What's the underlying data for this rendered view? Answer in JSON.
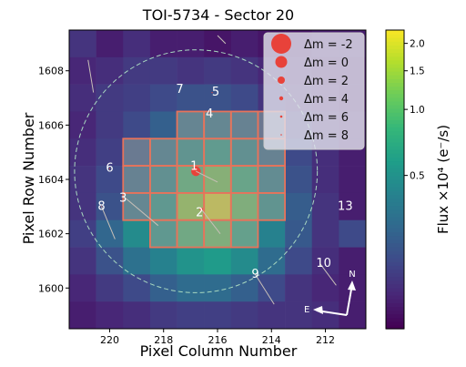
{
  "chart_data": {
    "type": "heatmap",
    "title": "TOI-5734 - Sector 20",
    "xlabel": "Pixel Column Number",
    "ylabel": "Pixel Row Number",
    "x_ticks": [
      "220",
      "218",
      "216",
      "214",
      "212"
    ],
    "y_ticks": [
      "1600",
      "1602",
      "1604",
      "1606",
      "1608"
    ],
    "xlim": [
      221.5,
      210.5
    ],
    "ylim": [
      1598.5,
      1609.5
    ],
    "colorbar": {
      "label": "Flux ×10⁴ (e⁻/s)",
      "scale": "log",
      "ticks": [
        "2.0",
        "1.5",
        "1.0",
        "0.5"
      ],
      "tick_values": [
        2.0,
        1.5,
        1.0,
        0.5
      ],
      "range": [
        0.1,
        2.3
      ],
      "colormap": "viridis"
    },
    "flux_grid_rows_top_to_bottom": [
      [
        0.16,
        0.13,
        0.15,
        0.13,
        0.13,
        0.12,
        0.13,
        0.12,
        0.12,
        0.13,
        0.13
      ],
      [
        0.14,
        0.15,
        0.17,
        0.17,
        0.16,
        0.17,
        0.16,
        0.14,
        0.13,
        0.12,
        0.12
      ],
      [
        0.15,
        0.17,
        0.18,
        0.2,
        0.22,
        0.22,
        0.2,
        0.16,
        0.14,
        0.13,
        0.12
      ],
      [
        0.14,
        0.17,
        0.2,
        0.26,
        0.32,
        0.35,
        0.3,
        0.22,
        0.17,
        0.14,
        0.13
      ],
      [
        0.15,
        0.18,
        0.24,
        0.34,
        0.5,
        0.6,
        0.45,
        0.3,
        0.2,
        0.15,
        0.13
      ],
      [
        0.16,
        0.2,
        0.3,
        0.45,
        0.9,
        1.2,
        0.8,
        0.4,
        0.22,
        0.15,
        0.13
      ],
      [
        0.16,
        0.22,
        0.35,
        0.55,
        1.4,
        2.1,
        1.1,
        0.5,
        0.25,
        0.16,
        0.13
      ],
      [
        0.18,
        0.28,
        0.45,
        0.55,
        0.9,
        1.1,
        0.7,
        0.4,
        0.24,
        0.16,
        0.2
      ],
      [
        0.16,
        0.22,
        0.32,
        0.4,
        0.5,
        0.55,
        0.45,
        0.3,
        0.2,
        0.15,
        0.13
      ],
      [
        0.14,
        0.17,
        0.2,
        0.26,
        0.3,
        0.3,
        0.26,
        0.2,
        0.16,
        0.14,
        0.13
      ],
      [
        0.13,
        0.14,
        0.15,
        0.17,
        0.18,
        0.18,
        0.17,
        0.16,
        0.16,
        0.15,
        0.13
      ]
    ],
    "aperture_pixels": [
      [
        217,
        1606
      ],
      [
        216,
        1606
      ],
      [
        215,
        1606
      ],
      [
        214,
        1606
      ],
      [
        219,
        1605
      ],
      [
        218,
        1605
      ],
      [
        217,
        1605
      ],
      [
        216,
        1605
      ],
      [
        215,
        1605
      ],
      [
        214,
        1605
      ],
      [
        219,
        1604
      ],
      [
        218,
        1604
      ],
      [
        217,
        1604
      ],
      [
        216,
        1604
      ],
      [
        215,
        1604
      ],
      [
        214,
        1604
      ],
      [
        219,
        1603
      ],
      [
        218,
        1603
      ],
      [
        217,
        1603
      ],
      [
        216,
        1603
      ],
      [
        215,
        1603
      ],
      [
        214,
        1603
      ],
      [
        218,
        1602
      ],
      [
        217,
        1602
      ],
      [
        216,
        1602
      ],
      [
        215,
        1602
      ]
    ],
    "stars": [
      {
        "label": "1",
        "x": 216.8,
        "y": 1604.3,
        "delta_m": 0
      },
      {
        "label": "2",
        "x": 216.6,
        "y": 1602.9,
        "delta_m": 6
      },
      {
        "label": "3",
        "x": 219.4,
        "y": 1603.3,
        "delta_m": 8
      },
      {
        "label": "4",
        "x": 216.3,
        "y": 1606.4,
        "delta_m": 8
      },
      {
        "label": "5",
        "x": 216.2,
        "y": 1607.2,
        "delta_m": 8
      },
      {
        "label": "6",
        "x": 220.0,
        "y": 1604.4,
        "delta_m": 8
      },
      {
        "label": "7",
        "x": 217.4,
        "y": 1607.3,
        "delta_m": 8
      },
      {
        "label": "8",
        "x": 220.3,
        "y": 1603.0,
        "delta_m": 8
      },
      {
        "label": "9",
        "x": 214.6,
        "y": 1600.5,
        "delta_m": 8
      },
      {
        "label": "10",
        "x": 212.2,
        "y": 1600.9,
        "delta_m": 8
      },
      {
        "label": "13",
        "x": 211.4,
        "y": 1603.0,
        "delta_m": 8
      }
    ],
    "legend": {
      "placement": "top-right",
      "entries": [
        {
          "label": "Δm = -2",
          "delta_m": -2
        },
        {
          "label": "Δm = 0",
          "delta_m": 0
        },
        {
          "label": "Δm = 2",
          "delta_m": 2
        },
        {
          "label": "Δm = 4",
          "delta_m": 4
        },
        {
          "label": "Δm = 6",
          "delta_m": 6
        },
        {
          "label": "Δm = 8",
          "delta_m": 8
        }
      ]
    },
    "compass": {
      "north_label": "N",
      "east_label": "E"
    },
    "colors": {
      "aperture_edge": "#e8735a",
      "marker": "#e8423a",
      "circle": "#a8d8c0"
    }
  }
}
